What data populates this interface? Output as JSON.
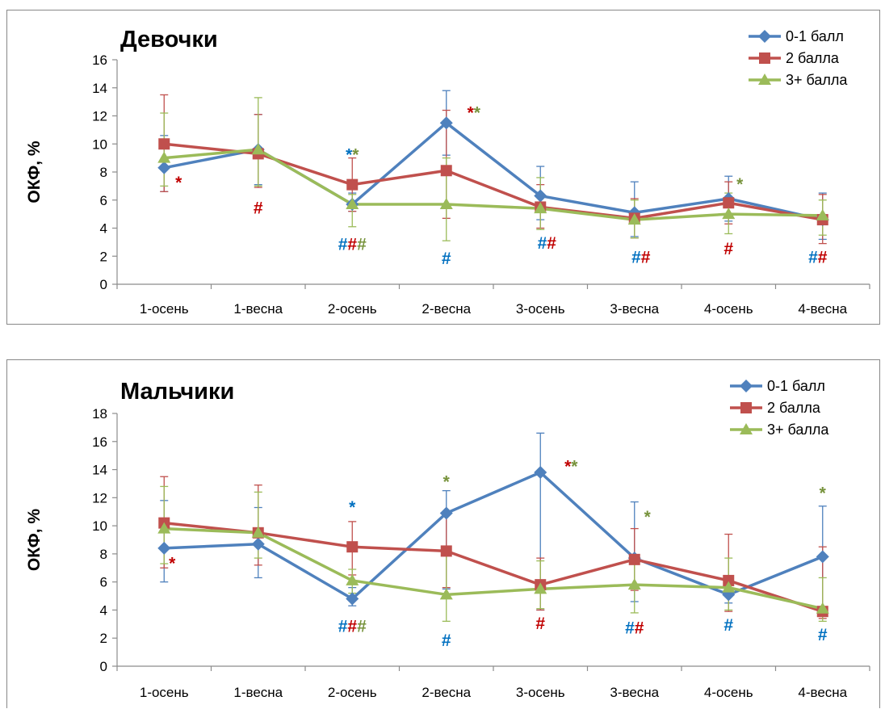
{
  "chart_data": [
    {
      "type": "line",
      "title": "Девочки",
      "xlabel": "",
      "ylabel": "ОКФ, %",
      "ylim": [
        0,
        16
      ],
      "yticks": [
        0,
        2,
        4,
        6,
        8,
        10,
        12,
        14,
        16
      ],
      "categories": [
        "1-осень",
        "1-весна",
        "2-осень",
        "2-весна",
        "3-осень",
        "3-весна",
        "4-осень",
        "4-весна"
      ],
      "legend_position": "top-right",
      "grid": false,
      "series": [
        {
          "name": "0-1 балл",
          "color": "#4f81bd",
          "marker": "diamond",
          "values": [
            8.3,
            9.6,
            5.7,
            11.5,
            6.3,
            5.1,
            6.1,
            4.6
          ],
          "err_high": [
            10.6,
            12.1,
            6.5,
            13.8,
            8.4,
            7.3,
            7.7,
            6.5
          ],
          "err_low": [
            6.6,
            7.1,
            5.2,
            9.2,
            4.6,
            3.4,
            4.5,
            3.2
          ]
        },
        {
          "name": "2 балла",
          "color": "#c0504d",
          "marker": "square",
          "values": [
            10.0,
            9.3,
            7.1,
            8.1,
            5.5,
            4.7,
            5.8,
            4.6
          ],
          "err_high": [
            13.5,
            12.1,
            9.0,
            12.4,
            7.1,
            6.1,
            7.3,
            6.4
          ],
          "err_low": [
            6.6,
            6.9,
            5.2,
            4.7,
            4.0,
            3.3,
            4.3,
            2.9
          ]
        },
        {
          "name": "3+ балла",
          "color": "#9bbb59",
          "marker": "triangle",
          "values": [
            9.0,
            9.6,
            5.7,
            5.7,
            5.4,
            4.6,
            5.0,
            4.9
          ],
          "err_high": [
            12.2,
            13.3,
            6.4,
            9.0,
            7.6,
            6.0,
            6.5,
            6.0
          ],
          "err_low": [
            7.0,
            7.0,
            4.1,
            3.1,
            3.9,
            3.3,
            3.6,
            3.5
          ]
        }
      ],
      "annotations": [
        {
          "category": 0,
          "y": 7.3,
          "dx": 18,
          "parts": [
            {
              "text": "*",
              "color": "#c00000"
            }
          ]
        },
        {
          "category": 1,
          "y": 5.5,
          "dx": 0,
          "parts": [
            {
              "text": "#",
              "color": "#c00000"
            }
          ]
        },
        {
          "category": 2,
          "y": 9.3,
          "dx": 0,
          "parts": [
            {
              "text": "*",
              "color": "#0070c0"
            },
            {
              "text": "*",
              "color": "#77933c"
            }
          ]
        },
        {
          "category": 2,
          "y": 2.9,
          "dx": 0,
          "parts": [
            {
              "text": "#",
              "color": "#0070c0"
            },
            {
              "text": "#",
              "color": "#c00000"
            },
            {
              "text": "#",
              "color": "#77933c"
            }
          ]
        },
        {
          "category": 3,
          "y": 1.9,
          "dx": 0,
          "parts": [
            {
              "text": "#",
              "color": "#0070c0"
            }
          ]
        },
        {
          "category": 3,
          "y": 12.3,
          "dx": 34,
          "parts": [
            {
              "text": "*",
              "color": "#c00000"
            },
            {
              "text": "*",
              "color": "#77933c"
            }
          ]
        },
        {
          "category": 4,
          "y": 3.0,
          "dx": 8,
          "parts": [
            {
              "text": "#",
              "color": "#0070c0"
            },
            {
              "text": "#",
              "color": "#c00000"
            }
          ]
        },
        {
          "category": 5,
          "y": 2.0,
          "dx": 8,
          "parts": [
            {
              "text": "#",
              "color": "#0070c0"
            },
            {
              "text": "#",
              "color": "#c00000"
            }
          ]
        },
        {
          "category": 6,
          "y": 7.2,
          "dx": 14,
          "parts": [
            {
              "text": "*",
              "color": "#77933c"
            }
          ]
        },
        {
          "category": 6,
          "y": 2.6,
          "dx": 0,
          "parts": [
            {
              "text": "#",
              "color": "#c00000"
            }
          ]
        },
        {
          "category": 7,
          "y": 2.0,
          "dx": -6,
          "parts": [
            {
              "text": "#",
              "color": "#0070c0"
            },
            {
              "text": "#",
              "color": "#c00000"
            }
          ]
        }
      ]
    },
    {
      "type": "line",
      "title": "Мальчики",
      "xlabel": "",
      "ylabel": "ОКФ, %",
      "ylim": [
        0,
        18
      ],
      "yticks": [
        0,
        2,
        4,
        6,
        8,
        10,
        12,
        14,
        16,
        18
      ],
      "categories": [
        "1-осень",
        "1-весна",
        "2-осень",
        "2-весна",
        "3-осень",
        "3-весна",
        "4-осень",
        "4-весна"
      ],
      "legend_position": "top-right",
      "grid": false,
      "series": [
        {
          "name": "0-1 балл",
          "color": "#4f81bd",
          "marker": "diamond",
          "values": [
            8.4,
            8.7,
            4.8,
            10.9,
            13.8,
            7.7,
            5.1,
            7.8
          ],
          "err_high": [
            11.8,
            11.3,
            5.6,
            12.5,
            16.6,
            11.7,
            5.8,
            11.4
          ],
          "err_low": [
            6.0,
            6.3,
            4.3,
            5.5,
            4.0,
            4.6,
            4.5,
            4.0
          ]
        },
        {
          "name": "2 балла",
          "color": "#c0504d",
          "marker": "square",
          "values": [
            10.2,
            9.5,
            8.5,
            8.2,
            5.8,
            7.6,
            6.1,
            3.9
          ],
          "err_high": [
            13.5,
            12.9,
            10.3,
            10.8,
            7.7,
            9.8,
            9.4,
            8.5
          ],
          "err_low": [
            7.0,
            7.2,
            6.5,
            5.6,
            4.0,
            5.4,
            3.9,
            3.4
          ]
        },
        {
          "name": "3+ балла",
          "color": "#9bbb59",
          "marker": "triangle",
          "values": [
            9.8,
            9.5,
            6.1,
            5.1,
            5.5,
            5.8,
            5.6,
            4.1
          ],
          "err_high": [
            12.8,
            12.4,
            6.9,
            8.4,
            7.5,
            7.7,
            7.7,
            6.3
          ],
          "err_low": [
            7.3,
            7.7,
            5.2,
            3.2,
            4.1,
            3.8,
            4.0,
            3.2
          ]
        }
      ],
      "annotations": [
        {
          "category": 0,
          "y": 7.4,
          "dx": 10,
          "parts": [
            {
              "text": "*",
              "color": "#c00000"
            }
          ]
        },
        {
          "category": 2,
          "y": 11.4,
          "dx": 0,
          "parts": [
            {
              "text": "*",
              "color": "#0070c0"
            }
          ]
        },
        {
          "category": 2,
          "y": 2.9,
          "dx": 0,
          "parts": [
            {
              "text": "#",
              "color": "#0070c0"
            },
            {
              "text": "#",
              "color": "#c00000"
            },
            {
              "text": "#",
              "color": "#77933c"
            }
          ]
        },
        {
          "category": 3,
          "y": 13.2,
          "dx": 0,
          "parts": [
            {
              "text": "*",
              "color": "#77933c"
            }
          ]
        },
        {
          "category": 3,
          "y": 1.9,
          "dx": 0,
          "parts": [
            {
              "text": "#",
              "color": "#0070c0"
            }
          ]
        },
        {
          "category": 4,
          "y": 14.3,
          "dx": 38,
          "parts": [
            {
              "text": "*",
              "color": "#c00000"
            },
            {
              "text": "*",
              "color": "#77933c"
            }
          ]
        },
        {
          "category": 4,
          "y": 3.1,
          "dx": 0,
          "parts": [
            {
              "text": "#",
              "color": "#c00000"
            }
          ]
        },
        {
          "category": 5,
          "y": 10.7,
          "dx": 16,
          "parts": [
            {
              "text": "*",
              "color": "#77933c"
            }
          ]
        },
        {
          "category": 5,
          "y": 2.8,
          "dx": 0,
          "parts": [
            {
              "text": "#",
              "color": "#0070c0"
            },
            {
              "text": "#",
              "color": "#c00000"
            }
          ]
        },
        {
          "category": 6,
          "y": 3.0,
          "dx": 0,
          "parts": [
            {
              "text": "#",
              "color": "#0070c0"
            }
          ]
        },
        {
          "category": 7,
          "y": 12.4,
          "dx": 0,
          "parts": [
            {
              "text": "*",
              "color": "#77933c"
            }
          ]
        },
        {
          "category": 7,
          "y": 2.3,
          "dx": 0,
          "parts": [
            {
              "text": "#",
              "color": "#0070c0"
            }
          ]
        }
      ]
    }
  ]
}
